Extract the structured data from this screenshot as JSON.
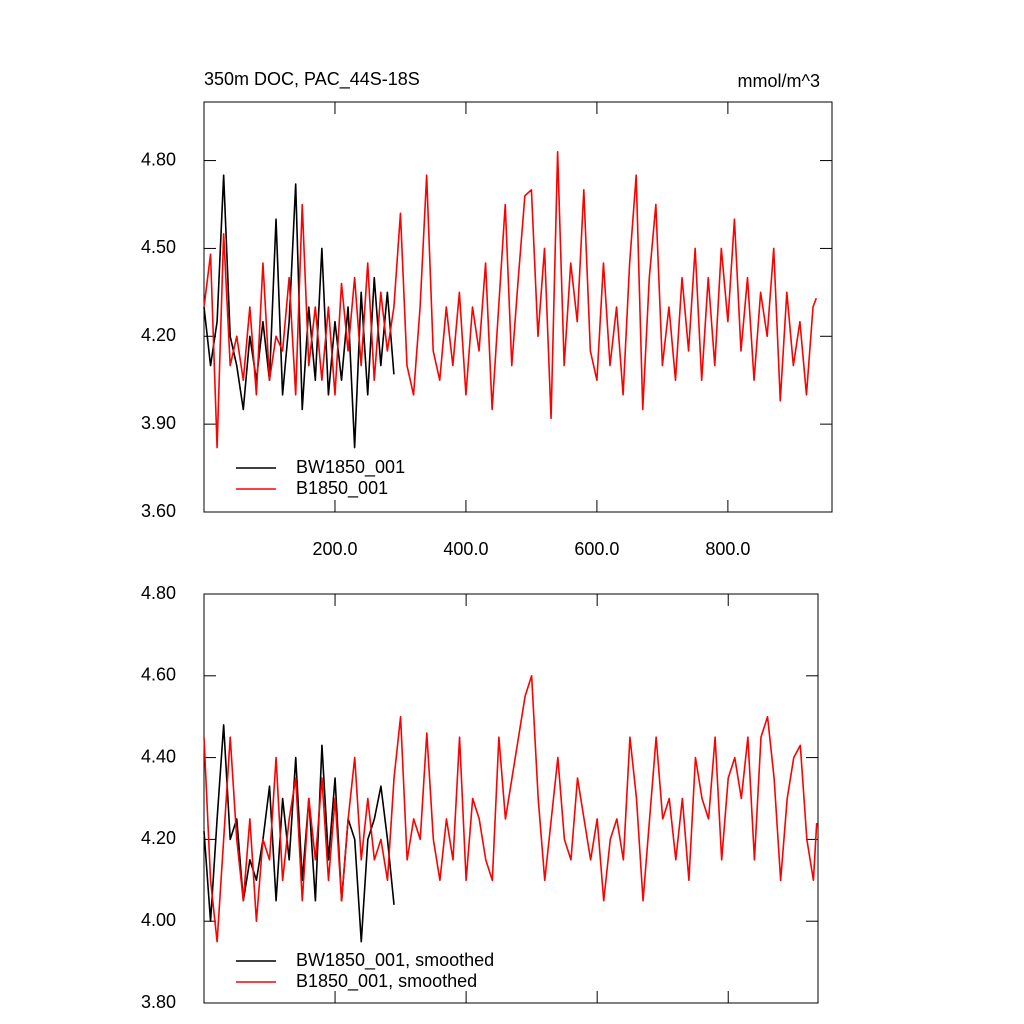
{
  "chart_data": [
    {
      "type": "line",
      "title": "350m DOC, PAC_44S-18S",
      "units": "mmol/m^3",
      "x": [
        0,
        10,
        20,
        30,
        40,
        50,
        60,
        70,
        80,
        90,
        100,
        110,
        120,
        130,
        140,
        150,
        160,
        170,
        180,
        190,
        200,
        210,
        220,
        230,
        240,
        250,
        260,
        270,
        280,
        290,
        300,
        310,
        320,
        330,
        340,
        350,
        360,
        370,
        380,
        390,
        400,
        410,
        420,
        430,
        440,
        450,
        460,
        470,
        480,
        490,
        500,
        510,
        520,
        530,
        540,
        550,
        560,
        570,
        580,
        590,
        600,
        610,
        620,
        630,
        640,
        650,
        660,
        670,
        680,
        690,
        700,
        710,
        720,
        730,
        740,
        750,
        760,
        770,
        780,
        790,
        800,
        810,
        820,
        830,
        840,
        850,
        860,
        870,
        880,
        890,
        900,
        910,
        920,
        930,
        935
      ],
      "series": [
        {
          "name": "BW1850_001",
          "color": "#000000",
          "values": [
            4.3,
            4.1,
            4.25,
            4.75,
            4.2,
            4.1,
            3.95,
            4.2,
            4.05,
            4.25,
            4.05,
            4.6,
            4.0,
            4.25,
            4.72,
            3.95,
            4.3,
            4.05,
            4.5,
            4.0,
            4.25,
            4.05,
            4.3,
            3.82,
            4.35,
            4.0,
            4.4,
            4.1,
            4.35,
            4.07,
            null,
            null,
            null,
            null,
            null,
            null,
            null,
            null,
            null,
            null,
            null,
            null,
            null,
            null,
            null,
            null,
            null,
            null,
            null,
            null,
            null,
            null,
            null,
            null,
            null,
            null,
            null,
            null,
            null,
            null,
            null,
            null,
            null,
            null,
            null,
            null,
            null,
            null,
            null,
            null,
            null,
            null,
            null,
            null,
            null,
            null,
            null,
            null,
            null,
            null,
            null,
            null,
            null,
            null,
            null,
            null,
            null,
            null,
            null,
            null,
            null,
            null,
            null,
            null,
            null
          ]
        },
        {
          "name": "B1850_001",
          "color": "#ff0000",
          "values": [
            4.3,
            4.48,
            3.82,
            4.55,
            4.1,
            4.2,
            4.05,
            4.3,
            4.0,
            4.45,
            4.05,
            4.2,
            4.15,
            4.4,
            4.0,
            4.65,
            4.1,
            4.3,
            4.05,
            4.3,
            4.0,
            4.38,
            4.15,
            4.4,
            4.1,
            4.45,
            4.05,
            4.35,
            4.15,
            4.3,
            4.62,
            4.1,
            4.0,
            4.3,
            4.75,
            4.15,
            4.05,
            4.3,
            4.1,
            4.35,
            4.0,
            4.3,
            4.15,
            4.45,
            3.95,
            4.3,
            4.65,
            4.1,
            4.4,
            4.68,
            4.7,
            4.2,
            4.5,
            3.92,
            4.83,
            4.1,
            4.45,
            4.25,
            4.7,
            4.15,
            4.05,
            4.45,
            4.1,
            4.3,
            4.0,
            4.45,
            4.75,
            3.95,
            4.4,
            4.65,
            4.1,
            4.3,
            4.05,
            4.4,
            4.15,
            4.5,
            4.05,
            4.4,
            4.1,
            4.5,
            4.25,
            4.6,
            4.15,
            4.4,
            4.05,
            4.35,
            4.2,
            4.5,
            3.98,
            4.35,
            4.1,
            4.25,
            4.0,
            4.3,
            4.33
          ]
        }
      ],
      "xlim": [
        0,
        959
      ],
      "xticks": [
        {
          "value": 200,
          "label": "200.0"
        },
        {
          "value": 400,
          "label": "400.0"
        },
        {
          "value": 600,
          "label": "600.0"
        },
        {
          "value": 800,
          "label": "800.0"
        }
      ],
      "ylim": [
        3.6,
        5.0
      ],
      "yticks": [
        {
          "value": 3.6,
          "label": "3.60"
        },
        {
          "value": 3.9,
          "label": "3.90"
        },
        {
          "value": 4.2,
          "label": "4.20"
        },
        {
          "value": 4.5,
          "label": "4.50"
        },
        {
          "value": 4.8,
          "label": "4.80"
        }
      ]
    },
    {
      "type": "line",
      "x": [
        0,
        10,
        20,
        30,
        40,
        50,
        60,
        70,
        80,
        90,
        100,
        110,
        120,
        130,
        140,
        150,
        160,
        170,
        180,
        190,
        200,
        210,
        220,
        230,
        240,
        250,
        260,
        270,
        280,
        290,
        300,
        310,
        320,
        330,
        340,
        350,
        360,
        370,
        380,
        390,
        400,
        410,
        420,
        430,
        440,
        450,
        460,
        470,
        480,
        490,
        500,
        510,
        520,
        530,
        540,
        550,
        560,
        570,
        580,
        590,
        600,
        610,
        620,
        630,
        640,
        650,
        660,
        670,
        680,
        690,
        700,
        710,
        720,
        730,
        740,
        750,
        760,
        770,
        780,
        790,
        800,
        810,
        820,
        830,
        840,
        850,
        860,
        870,
        880,
        890,
        900,
        910,
        920,
        930,
        935
      ],
      "series": [
        {
          "name": "BW1850_001, smoothed",
          "color": "#000000",
          "values": [
            4.22,
            4.0,
            4.25,
            4.48,
            4.2,
            4.25,
            4.05,
            4.15,
            4.1,
            4.2,
            4.33,
            4.05,
            4.3,
            4.15,
            4.4,
            4.1,
            4.3,
            4.05,
            4.43,
            4.15,
            4.35,
            4.05,
            4.25,
            4.2,
            3.95,
            4.2,
            4.25,
            4.33,
            4.2,
            4.04,
            null,
            null,
            null,
            null,
            null,
            null,
            null,
            null,
            null,
            null,
            null,
            null,
            null,
            null,
            null,
            null,
            null,
            null,
            null,
            null,
            null,
            null,
            null,
            null,
            null,
            null,
            null,
            null,
            null,
            null,
            null,
            null,
            null,
            null,
            null,
            null,
            null,
            null,
            null,
            null,
            null,
            null,
            null,
            null,
            null,
            null,
            null,
            null,
            null,
            null,
            null,
            null,
            null,
            null,
            null,
            null,
            null,
            null,
            null,
            null,
            null,
            null,
            null,
            null,
            null
          ]
        },
        {
          "name": "B1850_001, smoothed",
          "color": "#ff0000",
          "values": [
            4.45,
            4.1,
            3.95,
            4.2,
            4.45,
            4.2,
            4.05,
            4.25,
            4.0,
            4.2,
            4.15,
            4.4,
            4.1,
            4.25,
            4.35,
            4.05,
            4.3,
            4.15,
            4.35,
            4.1,
            4.3,
            4.05,
            4.25,
            4.4,
            4.15,
            4.3,
            4.15,
            4.2,
            4.1,
            4.35,
            4.5,
            4.15,
            4.25,
            4.2,
            4.46,
            4.2,
            4.1,
            4.25,
            4.15,
            4.45,
            4.1,
            4.3,
            4.25,
            4.15,
            4.1,
            4.45,
            4.25,
            4.35,
            4.45,
            4.55,
            4.6,
            4.3,
            4.1,
            4.25,
            4.4,
            4.2,
            4.15,
            4.35,
            4.25,
            4.15,
            4.25,
            4.05,
            4.2,
            4.25,
            4.15,
            4.45,
            4.3,
            4.05,
            4.25,
            4.45,
            4.25,
            4.3,
            4.15,
            4.3,
            4.1,
            4.4,
            4.3,
            4.25,
            4.45,
            4.15,
            4.35,
            4.4,
            4.3,
            4.45,
            4.15,
            4.45,
            4.5,
            4.35,
            4.1,
            4.3,
            4.4,
            4.43,
            4.2,
            4.1,
            4.24
          ]
        }
      ],
      "xlim": [
        0,
        937
      ],
      "xticks": [
        200,
        400,
        600,
        800
      ],
      "ylim": [
        3.8,
        4.8
      ],
      "yticks": [
        {
          "value": 3.8,
          "label": "3.80"
        },
        {
          "value": 4.0,
          "label": "4.00"
        },
        {
          "value": 4.2,
          "label": "4.20"
        },
        {
          "value": 4.4,
          "label": "4.40"
        },
        {
          "value": 4.6,
          "label": "4.60"
        },
        {
          "value": 4.8,
          "label": "4.80"
        }
      ]
    }
  ]
}
